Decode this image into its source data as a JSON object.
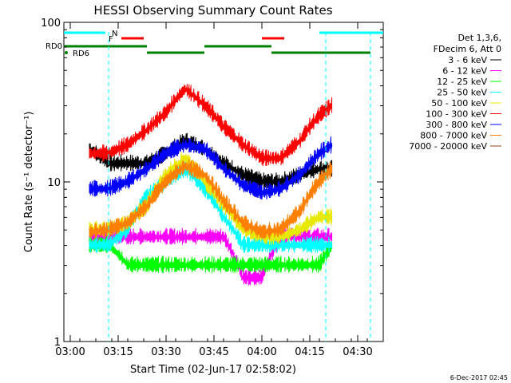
{
  "chart_data": {
    "type": "line",
    "title": "HESSI Observing Summary Count Rates",
    "xlabel": "Start Time (02-Jun-17 02:58:02)",
    "ylabel": "Count Rate (s⁻¹ detector⁻¹)",
    "y_scale": "log",
    "xlim": [
      "02:58",
      "04:38"
    ],
    "ylim": [
      1,
      100
    ],
    "x_ticks": [
      "03:00",
      "03:15",
      "03:30",
      "03:45",
      "04:00",
      "04:15",
      "04:30"
    ],
    "y_ticks": [
      "1",
      "10",
      "100"
    ],
    "grid": false,
    "legend_header": [
      "Det 1,3,6,",
      "FDecim 6, Att 0"
    ],
    "legend_position": "right",
    "series": [
      {
        "name": "3 - 6 keV",
        "color": "#000000",
        "x": [
          "03:06",
          "03:12",
          "03:18",
          "03:24",
          "03:30",
          "03:36",
          "03:42",
          "03:48",
          "03:54",
          "04:00",
          "04:06",
          "04:12",
          "04:18",
          "04:22"
        ],
        "y": [
          16,
          13,
          13,
          13,
          15,
          18,
          16,
          13,
          11,
          10,
          10,
          11,
          12,
          12
        ]
      },
      {
        "name": "6 - 12 keV",
        "color": "#ff00ff",
        "x": [
          "03:06",
          "03:12",
          "03:18",
          "03:24",
          "03:30",
          "03:36",
          "03:42",
          "03:48",
          "03:54",
          "04:00",
          "04:06",
          "04:12",
          "04:18",
          "04:22"
        ],
        "y": [
          4.5,
          4.5,
          4.5,
          4.5,
          4.5,
          4.5,
          4.5,
          4.5,
          2.5,
          2.5,
          4.5,
          4.5,
          4.5,
          4.5
        ]
      },
      {
        "name": "12 - 25 keV",
        "color": "#00ff00",
        "x": [
          "03:06",
          "03:12",
          "03:18",
          "03:24",
          "03:30",
          "03:36",
          "03:42",
          "03:48",
          "03:54",
          "04:00",
          "04:06",
          "04:12",
          "04:18",
          "04:22"
        ],
        "y": [
          4,
          4,
          3,
          3,
          3,
          3,
          3,
          3,
          3,
          3,
          3,
          3,
          3,
          4
        ]
      },
      {
        "name": "25 - 50 keV",
        "color": "#00ffff",
        "x": [
          "03:06",
          "03:12",
          "03:18",
          "03:24",
          "03:30",
          "03:36",
          "03:42",
          "03:48",
          "03:54",
          "04:00",
          "04:06",
          "04:12",
          "04:18",
          "04:22"
        ],
        "y": [
          4,
          4,
          5,
          8,
          10,
          12,
          9,
          6,
          4,
          4,
          4,
          4,
          4,
          4
        ]
      },
      {
        "name": "50 - 100 keV",
        "color": "#e8e800",
        "x": [
          "03:06",
          "03:12",
          "03:18",
          "03:24",
          "03:30",
          "03:36",
          "03:42",
          "03:48",
          "03:54",
          "04:00",
          "04:06",
          "04:12",
          "04:18",
          "04:22"
        ],
        "y": [
          5,
          5,
          5.5,
          7,
          11,
          14,
          10,
          7,
          5,
          4.5,
          4.5,
          5,
          6,
          6
        ]
      },
      {
        "name": "100 - 300 keV",
        "color": "#ff0000",
        "x": [
          "03:06",
          "03:12",
          "03:18",
          "03:24",
          "03:30",
          "03:36",
          "03:42",
          "03:48",
          "03:54",
          "04:00",
          "04:06",
          "04:12",
          "04:18",
          "04:22"
        ],
        "y": [
          15,
          15,
          17,
          21,
          27,
          38,
          30,
          22,
          17,
          14,
          14,
          18,
          26,
          30
        ]
      },
      {
        "name": "300 - 800 keV",
        "color": "#0000ff",
        "x": [
          "03:06",
          "03:12",
          "03:18",
          "03:24",
          "03:30",
          "03:36",
          "03:42",
          "03:48",
          "03:54",
          "04:00",
          "04:06",
          "04:12",
          "04:18",
          "04:22"
        ],
        "y": [
          9,
          9,
          10,
          12,
          15,
          17,
          16,
          12,
          9.5,
          8.5,
          9,
          11,
          15,
          17
        ]
      },
      {
        "name": "800 - 7000 keV",
        "color": "#ff8000",
        "x": [
          "03:06",
          "03:12",
          "03:18",
          "03:24",
          "03:30",
          "03:36",
          "03:42",
          "03:48",
          "03:54",
          "04:00",
          "04:06",
          "04:12",
          "04:18",
          "04:22"
        ],
        "y": [
          4.8,
          5,
          5.5,
          7,
          10,
          12.5,
          11,
          7.5,
          5.5,
          4.8,
          5,
          6.5,
          10,
          12
        ]
      },
      {
        "name": "7000 - 20000 keV",
        "color": "#8b4513",
        "x": [],
        "y": []
      }
    ],
    "annotations": {
      "flags": [
        "N",
        "F",
        "RD0",
        "RD6"
      ],
      "rd0_label": "RD0",
      "rd6_label": "RD6",
      "n_label": "N",
      "f_label": "F"
    },
    "timestamp": "6-Dec-2017 02:45"
  }
}
